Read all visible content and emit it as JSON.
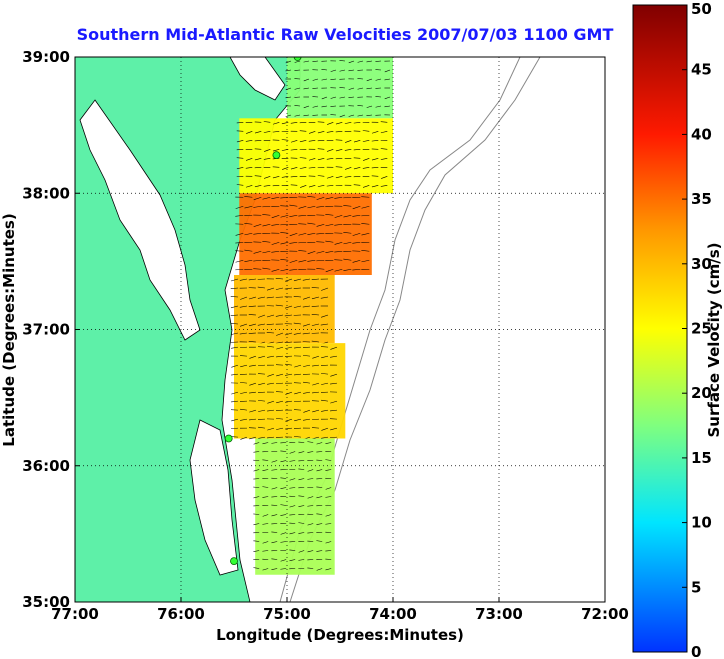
{
  "chart_data": {
    "type": "heatmap",
    "title": "Southern Mid-Atlantic Raw Velocities 2007/07/03 1100 GMT",
    "xlabel": "Longitude (Degrees:Minutes)",
    "ylabel": "Latitude (Degrees:Minutes)",
    "colorbar_label": "Surface Velocity (cm/s)",
    "xlim": [
      -77,
      -72
    ],
    "ylim": [
      35,
      39
    ],
    "x_ticks": [
      {
        "value": -77,
        "label": "77:00"
      },
      {
        "value": -76,
        "label": "76:00"
      },
      {
        "value": -75,
        "label": "75:00"
      },
      {
        "value": -74,
        "label": "74:00"
      },
      {
        "value": -73,
        "label": "73:00"
      },
      {
        "value": -72,
        "label": "72:00"
      }
    ],
    "y_ticks": [
      {
        "value": 35,
        "label": "35:00"
      },
      {
        "value": 36,
        "label": "36:00"
      },
      {
        "value": 37,
        "label": "37:00"
      },
      {
        "value": 38,
        "label": "38:00"
      },
      {
        "value": 39,
        "label": "39:00"
      }
    ],
    "colorbar_range": [
      0,
      50
    ],
    "colorbar_ticks": [
      {
        "value": 0,
        "label": "0"
      },
      {
        "value": 5,
        "label": "5"
      },
      {
        "value": 10,
        "label": "10"
      },
      {
        "value": 15,
        "label": "15"
      },
      {
        "value": 20,
        "label": "20"
      },
      {
        "value": 25,
        "label": "25"
      },
      {
        "value": 30,
        "label": "30"
      },
      {
        "value": 35,
        "label": "35"
      },
      {
        "value": 40,
        "label": "40"
      },
      {
        "value": 45,
        "label": "45"
      },
      {
        "value": 50,
        "label": "50"
      }
    ],
    "grid": "dotted",
    "colormap": "jet",
    "land_color": "#5ef0a8",
    "ocean_color": "#ffffff",
    "hf_radar_sites": [
      {
        "lon": -74.9,
        "lat": 39.0
      },
      {
        "lon": -75.1,
        "lat": 38.28
      },
      {
        "lon": -75.55,
        "lat": 36.2
      },
      {
        "lon": -75.5,
        "lat": 35.3
      }
    ],
    "velocity_regions": [
      {
        "lon": [
          -75.0,
          -74.0
        ],
        "lat": [
          38.55,
          39.0
        ],
        "speed": 18
      },
      {
        "lon": [
          -75.45,
          -74.0
        ],
        "lat": [
          38.0,
          38.55
        ],
        "speed": 25
      },
      {
        "lon": [
          -75.45,
          -74.2
        ],
        "lat": [
          37.4,
          38.0
        ],
        "speed": 35
      },
      {
        "lon": [
          -75.5,
          -74.55
        ],
        "lat": [
          36.9,
          37.4
        ],
        "speed": 30
      },
      {
        "lon": [
          -75.5,
          -74.45
        ],
        "lat": [
          36.2,
          36.9
        ],
        "speed": 28
      },
      {
        "lon": [
          -75.3,
          -74.55
        ],
        "lat": [
          35.2,
          36.2
        ],
        "speed": 20
      }
    ]
  }
}
